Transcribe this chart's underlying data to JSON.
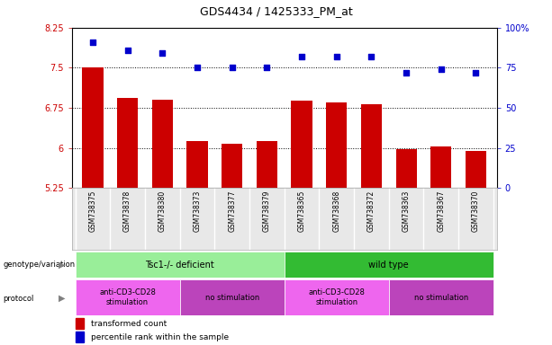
{
  "title": "GDS4434 / 1425333_PM_at",
  "samples": [
    "GSM738375",
    "GSM738378",
    "GSM738380",
    "GSM738373",
    "GSM738377",
    "GSM738379",
    "GSM738365",
    "GSM738368",
    "GSM738372",
    "GSM738363",
    "GSM738367",
    "GSM738370"
  ],
  "bar_values": [
    7.5,
    6.93,
    6.9,
    6.13,
    6.08,
    6.13,
    6.88,
    6.85,
    6.82,
    5.97,
    6.02,
    5.95
  ],
  "dot_values": [
    91,
    86,
    84,
    75,
    75,
    75,
    82,
    82,
    82,
    72,
    74,
    72
  ],
  "ylim_left": [
    5.25,
    8.25
  ],
  "ylim_right": [
    0,
    100
  ],
  "yticks_left": [
    5.25,
    6.0,
    6.75,
    7.5,
    8.25
  ],
  "yticks_right": [
    0,
    25,
    50,
    75,
    100
  ],
  "ytick_labels_left": [
    "5.25",
    "6",
    "6.75",
    "7.5",
    "8.25"
  ],
  "ytick_labels_right": [
    "0",
    "25",
    "50",
    "75",
    "100%"
  ],
  "hlines": [
    6.0,
    6.75,
    7.5
  ],
  "bar_color": "#cc0000",
  "dot_color": "#0000cc",
  "bar_width": 0.6,
  "genotype_groups": [
    {
      "label": "Tsc1-/- deficient",
      "start": 0,
      "end": 6,
      "color": "#99ee99"
    },
    {
      "label": "wild type",
      "start": 6,
      "end": 12,
      "color": "#33bb33"
    }
  ],
  "protocol_groups": [
    {
      "label": "anti-CD3-CD28\nstimulation",
      "start": 0,
      "end": 3,
      "color": "#ee66ee"
    },
    {
      "label": "no stimulation",
      "start": 3,
      "end": 6,
      "color": "#bb44bb"
    },
    {
      "label": "anti-CD3-CD28\nstimulation",
      "start": 6,
      "end": 9,
      "color": "#ee66ee"
    },
    {
      "label": "no stimulation",
      "start": 9,
      "end": 12,
      "color": "#bb44bb"
    }
  ],
  "tick_color_left": "#cc0000",
  "tick_color_right": "#0000cc"
}
